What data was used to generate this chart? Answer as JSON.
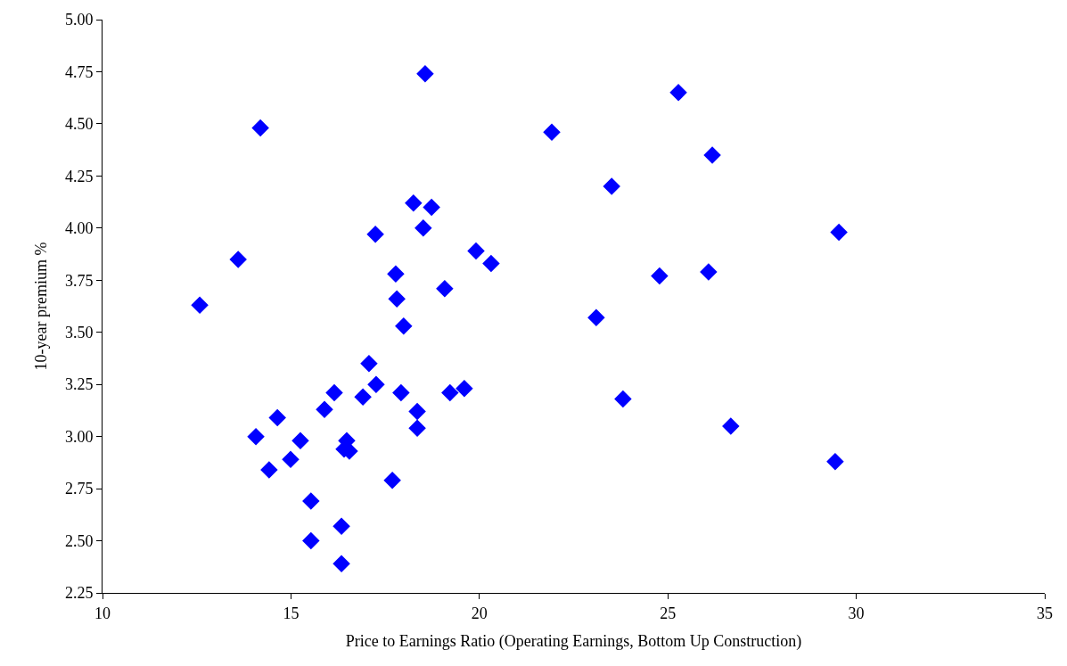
{
  "chart_data": {
    "type": "scatter",
    "xlabel": "Price to Earnings Ratio (Operating Earnings, Bottom Up Construction)",
    "ylabel": "10-year premium %",
    "x": [
      12.58,
      14.19,
      13.6,
      14.07,
      14.42,
      14.64,
      14.99,
      15.25,
      15.53,
      15.53,
      15.89,
      16.15,
      16.34,
      16.34,
      16.48,
      16.41,
      16.55,
      16.91,
      17.07,
      17.24,
      17.26,
      17.69,
      17.78,
      17.81,
      17.92,
      17.99,
      18.25,
      18.35,
      18.35,
      18.51,
      18.56,
      18.73,
      19.08,
      19.22,
      19.6,
      19.91,
      20.31,
      21.92,
      23.1,
      23.51,
      23.81,
      24.78,
      25.28,
      26.08,
      26.18,
      26.67,
      29.44,
      29.54
    ],
    "values": [
      3.63,
      4.48,
      3.85,
      3.0,
      2.84,
      3.09,
      2.89,
      2.98,
      2.69,
      2.5,
      3.13,
      3.21,
      2.57,
      2.39,
      2.98,
      2.94,
      2.93,
      3.19,
      3.35,
      3.97,
      3.25,
      2.79,
      3.78,
      3.66,
      3.21,
      3.53,
      4.12,
      3.12,
      3.04,
      4.0,
      4.74,
      4.1,
      3.71,
      3.21,
      3.23,
      3.89,
      3.83,
      4.46,
      3.57,
      4.2,
      3.18,
      3.77,
      4.65,
      3.79,
      4.35,
      3.05,
      2.88,
      3.98
    ],
    "color": "#0000ff",
    "marker": "diamond",
    "xlim": [
      10,
      35
    ],
    "xticks": [
      10,
      15,
      20,
      25,
      30,
      35
    ],
    "ylim": [
      2.25,
      5.0
    ],
    "yticks": [
      {
        "value": 2.25,
        "label": "2.25"
      },
      {
        "value": 2.5,
        "label": "2.50"
      },
      {
        "value": 2.75,
        "label": "2.75"
      },
      {
        "value": 3.0,
        "label": "3.00"
      },
      {
        "value": 3.25,
        "label": "3.25"
      },
      {
        "value": 3.5,
        "label": "3.50"
      },
      {
        "value": 3.75,
        "label": "3.75"
      },
      {
        "value": 4.0,
        "label": "4.00"
      },
      {
        "value": 4.25,
        "label": "4.25"
      },
      {
        "value": 4.5,
        "label": "4.50"
      },
      {
        "value": 4.75,
        "label": "4.75"
      },
      {
        "value": 5.0,
        "label": "5.00"
      }
    ],
    "grid": false,
    "legend": false
  }
}
